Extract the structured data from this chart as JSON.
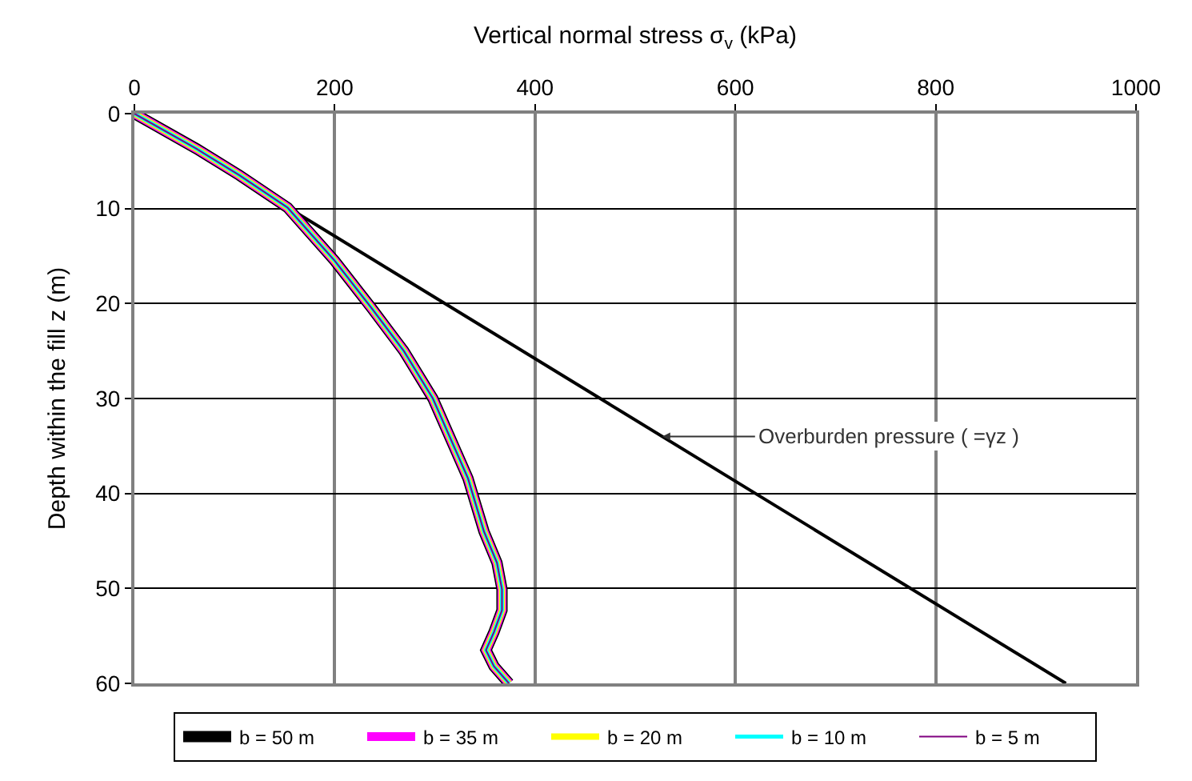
{
  "chart_data": {
    "type": "line",
    "xlabel": "Vertical normal stress σ$_{v}$ (kPa)",
    "ylabel": "Depth within the fill z (m)",
    "xlim": [
      0,
      1000
    ],
    "xticks": [
      0,
      200,
      400,
      600,
      800,
      1000
    ],
    "ylim": [
      60,
      0
    ],
    "yticks": [
      0,
      10,
      20,
      30,
      40,
      50,
      60
    ],
    "grid": true,
    "legend": "bottom",
    "marker": "none",
    "line_style": "solid",
    "annotations": [
      {
        "text": "Overburden pressure ( =γz )",
        "x": 527,
        "y": 34
      }
    ],
    "series": [
      {
        "color": "#000000",
        "x": [
          0,
          930
        ],
        "values": [
          0,
          60
        ]
      },
      {
        "name": "b = 50 m",
        "color": "#000000",
        "x": [
          0,
          62,
          105,
          153,
          200,
          237,
          269,
          298,
          333,
          349,
          362,
          367,
          367,
          359,
          351,
          359,
          374
        ],
        "values": [
          0,
          3.7,
          6.5,
          9.9,
          15.5,
          20.5,
          25,
          30,
          38.4,
          44,
          47.3,
          50.1,
          52.3,
          54.6,
          56.5,
          58.2,
          60
        ]
      },
      {
        "name": "b = 35 m",
        "color": "#ff00ff",
        "x": [
          0,
          62,
          105,
          153,
          200,
          237,
          269,
          298,
          333,
          349,
          362,
          367,
          367,
          359,
          351,
          359,
          374
        ],
        "values": [
          0,
          3.7,
          6.5,
          9.9,
          15.5,
          20.5,
          25,
          30,
          38.4,
          44,
          47.3,
          50.1,
          52.3,
          54.6,
          56.5,
          58.2,
          60
        ]
      },
      {
        "name": "b = 20 m",
        "color": "#ffff00",
        "x": [
          0,
          62,
          105,
          153,
          200,
          237,
          269,
          298,
          333,
          349,
          362,
          367,
          367,
          359,
          351,
          359,
          374
        ],
        "values": [
          0,
          3.7,
          6.5,
          9.9,
          15.5,
          20.5,
          25,
          30,
          38.4,
          44,
          47.3,
          50.1,
          52.3,
          54.6,
          56.5,
          58.2,
          60
        ]
      },
      {
        "name": "b = 10 m",
        "color": "#00ffff",
        "x": [
          0,
          62,
          105,
          153,
          200,
          237,
          269,
          298,
          333,
          349,
          362,
          367,
          367,
          359,
          351,
          359,
          374
        ],
        "values": [
          0,
          3.7,
          6.5,
          9.9,
          15.5,
          20.5,
          25,
          30,
          38.4,
          44,
          47.3,
          50.1,
          52.3,
          54.6,
          56.5,
          58.2,
          60
        ]
      },
      {
        "name": "b = 5 m",
        "color": "#800080",
        "x": [
          0,
          62,
          105,
          153,
          200,
          237,
          269,
          298,
          333,
          349,
          362,
          367,
          367,
          359,
          351,
          359,
          374
        ],
        "values": [
          0,
          3.7,
          6.5,
          9.9,
          15.5,
          20.5,
          25,
          30,
          38.4,
          44,
          47.3,
          50.1,
          52.3,
          54.6,
          56.5,
          58.2,
          60
        ]
      }
    ]
  }
}
